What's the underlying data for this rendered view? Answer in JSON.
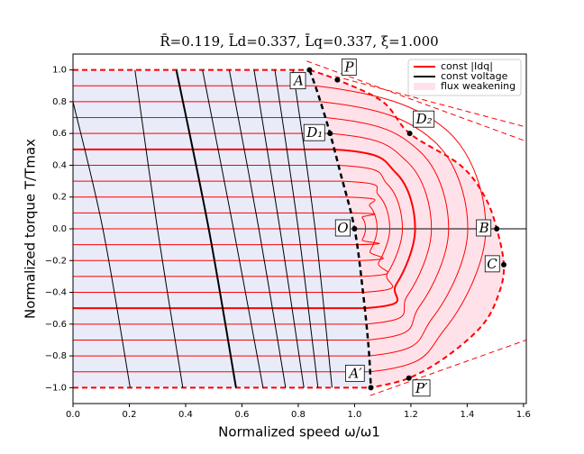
{
  "chart_data": {
    "type": "line",
    "title": "R̄=0.119, L̄d=0.337, L̄q=0.337, ξ=1.000",
    "x_label": "Normalized speed ω/ω1",
    "y_label": "Normalized torque T/Tmax",
    "xlim": [
      0,
      1.61
    ],
    "ylim": [
      -1.1,
      1.1
    ],
    "xticks": [
      {
        "value": 0,
        "label": "0.0"
      },
      0.2,
      0.4,
      0.6,
      0.8,
      {
        "value": 1,
        "label": "1.0"
      },
      1.2,
      1.4,
      1.6
    ],
    "yticks": [
      {
        "value": -1,
        "label": "−1.0"
      },
      {
        "value": -0.8,
        "label": "−0.8"
      },
      {
        "value": -0.6,
        "label": "−0.6"
      },
      {
        "value": -0.4,
        "label": "−0.4"
      },
      {
        "value": -0.2,
        "label": "−0.2"
      },
      {
        "value": 0,
        "label": "0.0"
      },
      0.2,
      0.4,
      0.6,
      0.8,
      {
        "value": 1,
        "label": "1.0"
      }
    ],
    "legend": "upper right",
    "series": [
      {
        "name": "const |Idq|",
        "color": "#ff0000",
        "lines": [
          {
            "x": [
              0,
              1.0
            ],
            "y": [
              0,
              0
            ]
          },
          {
            "x": [
              0,
              0.986,
              1.027,
              1.039,
              1.027,
              1.008,
              0
            ],
            "y": [
              0.1,
              0.1,
              0.07,
              0,
              -0.07,
              -0.1,
              -0.1
            ]
          },
          {
            "x": [
              0,
              0.971,
              1.055,
              1.08,
              1.055,
              1.015,
              0
            ],
            "y": [
              0.2,
              0.2,
              0.14,
              0,
              -0.14,
              -0.2,
              -0.2
            ]
          },
          {
            "x": [
              0,
              0.957,
              1.086,
              1.125,
              1.086,
              1.023,
              0
            ],
            "y": [
              0.3,
              0.3,
              0.21,
              0,
              -0.21,
              -0.3,
              -0.3
            ]
          },
          {
            "x": [
              0,
              0.943,
              1.117,
              1.17,
              1.117,
              1.03,
              0
            ],
            "y": [
              0.4,
              0.4,
              0.28,
              0,
              -0.28,
              -0.4,
              -0.4
            ]
          },
          {
            "x": [
              0,
              0.928,
              1.148,
              1.215,
              1.148,
              1.036,
              0
            ],
            "y": [
              0.5,
              0.5,
              0.35,
              0,
              -0.35,
              -0.5,
              -0.5
            ],
            "width": 2
          },
          {
            "x": [
              0,
              0.913,
              1.188,
              1.273,
              1.188,
              1.041,
              0
            ],
            "y": [
              0.6,
              0.6,
              0.42,
              0,
              -0.42,
              -0.6,
              -0.6
            ]
          },
          {
            "x": [
              0,
              0.896,
              1.23,
              1.334,
              1.23,
              1.047,
              0
            ],
            "y": [
              0.7,
              0.7,
              0.49,
              0,
              -0.49,
              -0.7,
              -0.7
            ]
          },
          {
            "x": [
              0,
              0.879,
              1.277,
              1.402,
              1.277,
              1.052,
              0
            ],
            "y": [
              0.8,
              0.8,
              0.56,
              0,
              -0.56,
              -0.8,
              -0.8
            ]
          },
          {
            "x": [
              0,
              0.86,
              1.321,
              1.466,
              1.321,
              1.055,
              0
            ],
            "y": [
              0.9,
              0.9,
              0.63,
              0,
              -0.63,
              -0.9,
              -0.9
            ]
          },
          {
            "x": [
              0,
              0.84
            ],
            "y": [
              1,
              1
            ],
            "dash": true,
            "width": 2
          },
          {
            "x": [
              0,
              1.058
            ],
            "y": [
              -1,
              -1
            ],
            "dash": true,
            "width": 2
          },
          {
            "x": [
              0.84,
              0.939,
              1.1,
              1.196,
              1.376,
              1.463,
              1.505,
              1.53,
              1.514,
              1.457,
              1.33,
              1.193,
              1.058
            ],
            "y": [
              1,
              0.938,
              0.8,
              0.6,
              0.4,
              0.2,
              0,
              -0.226,
              -0.4,
              -0.6,
              -0.8,
              -0.94,
              -1
            ],
            "dash": true,
            "width": 2
          },
          {
            "x": [
              0.83,
              1.614
            ],
            "y": [
              1.056,
              0.548
            ],
            "dash": true
          },
          {
            "x": [
              0.93,
              1.61
            ],
            "y": [
              0.96,
              0.64
            ],
            "dash": true
          },
          {
            "x": [
              1.055,
              1.61
            ],
            "y": [
              -1.05,
              -0.7
            ],
            "dash": true
          }
        ]
      },
      {
        "name": "const voltage",
        "color": "#000000",
        "lines": [
          {
            "x": [
              0,
              0.106,
              0.203
            ],
            "y": [
              0.8,
              0,
              -1
            ]
          },
          {
            "x": [
              0.22,
              0.3,
              0.39
            ],
            "y": [
              1,
              0,
              -1
            ]
          },
          {
            "x": [
              0.367,
              0.482,
              0.579
            ],
            "y": [
              1,
              0,
              -1
            ],
            "width": 2
          },
          {
            "x": [
              0.46,
              0.57,
              0.675
            ],
            "y": [
              1,
              0,
              -1
            ]
          },
          {
            "x": [
              0.555,
              0.66,
              0.755
            ],
            "y": [
              1,
              0,
              -1
            ]
          },
          {
            "x": [
              0.643,
              0.735,
              0.82
            ],
            "y": [
              1,
              0,
              -1
            ]
          },
          {
            "x": [
              0.717,
              0.8,
              0.87
            ],
            "y": [
              1,
              0,
              -1
            ]
          },
          {
            "x": [
              0.781,
              0.86,
              0.92
            ],
            "y": [
              1,
              0,
              -1
            ]
          },
          {
            "x": [
              0.84,
              0.87,
              0.913,
              0.95,
              1.0,
              1.03,
              1.05,
              1.058
            ],
            "y": [
              1,
              0.85,
              0.6,
              0.35,
              0,
              -0.4,
              -0.75,
              -1
            ],
            "dash": true,
            "width": 2.5
          }
        ]
      }
    ],
    "region": {
      "name": "flux weakening",
      "color": "#ffb6c8"
    },
    "base_region_color": "#dfe3f7",
    "points": [
      {
        "label": "A",
        "x": 0.84,
        "y": 1.0
      },
      {
        "label": "P",
        "x": 0.939,
        "y": 0.938
      },
      {
        "label": "D₁",
        "x": 0.913,
        "y": 0.6
      },
      {
        "label": "D₂",
        "x": 1.196,
        "y": 0.6
      },
      {
        "label": "O",
        "x": 1.0,
        "y": 0
      },
      {
        "label": "B",
        "x": 1.505,
        "y": 0
      },
      {
        "label": "C",
        "x": 1.53,
        "y": -0.226
      },
      {
        "label": "A′",
        "x": 1.058,
        "y": -1.0
      },
      {
        "label": "P′",
        "x": 1.193,
        "y": -0.94
      }
    ]
  }
}
